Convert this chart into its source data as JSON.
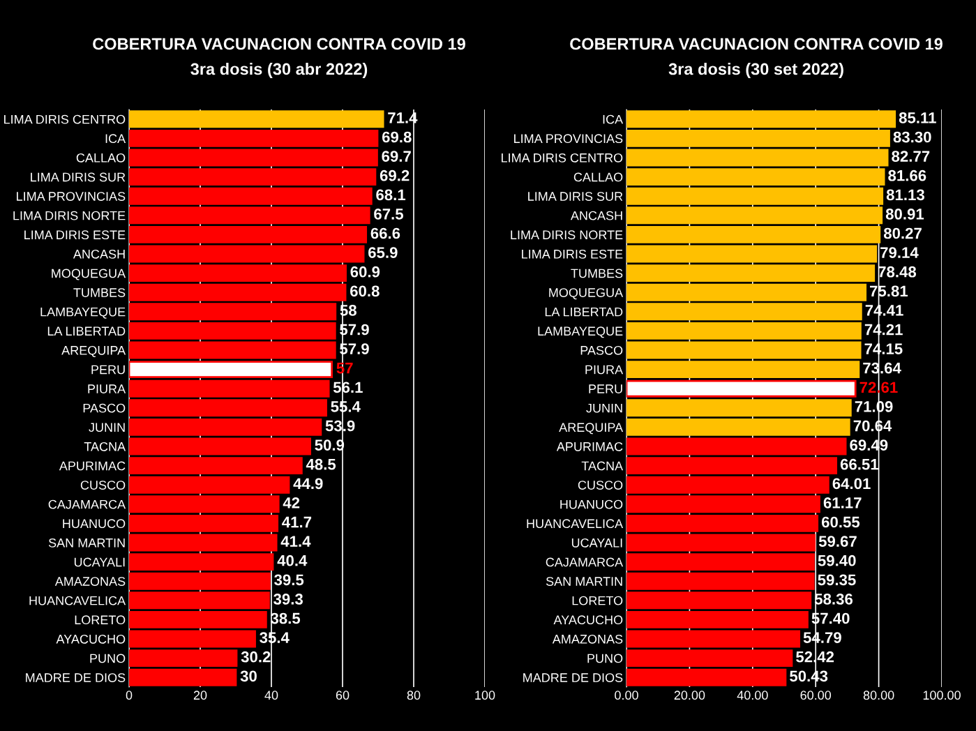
{
  "chart_data": [
    {
      "type": "bar",
      "orientation": "horizontal",
      "title": "COBERTURA VACUNACION CONTRA COVID 19",
      "subtitle": "3ra dosis (30 abr 2022)",
      "categories": [
        "LIMA DIRIS CENTRO",
        "ICA",
        "CALLAO",
        "LIMA DIRIS SUR",
        "LIMA PROVINCIAS",
        "LIMA DIRIS NORTE",
        "LIMA DIRIS ESTE",
        "ANCASH",
        "MOQUEGUA",
        "TUMBES",
        "LAMBAYEQUE",
        "LA LIBERTAD",
        "AREQUIPA",
        "PERU",
        "PIURA",
        "PASCO",
        "JUNIN",
        "TACNA",
        "APURIMAC",
        "CUSCO",
        "CAJAMARCA",
        "HUANUCO",
        "SAN MARTIN",
        "UCAYALI",
        "AMAZONAS",
        "HUANCAVELICA",
        "LORETO",
        "AYACUCHO",
        "PUNO",
        "MADRE DE DIOS"
      ],
      "values": [
        71.4,
        69.8,
        69.7,
        69.2,
        68.1,
        67.5,
        66.6,
        65.9,
        60.9,
        60.8,
        58,
        57.9,
        57.9,
        57,
        56.1,
        55.4,
        53.9,
        50.9,
        48.5,
        44.9,
        42,
        41.7,
        41.4,
        40.4,
        39.5,
        39.3,
        38.5,
        35.4,
        30.2,
        30
      ],
      "colors": [
        "#ffc000",
        "#ff0000",
        "#ff0000",
        "#ff0000",
        "#ff0000",
        "#ff0000",
        "#ff0000",
        "#ff0000",
        "#ff0000",
        "#ff0000",
        "#ff0000",
        "#ff0000",
        "#ff0000",
        "#ffffff",
        "#ff0000",
        "#ff0000",
        "#ff0000",
        "#ff0000",
        "#ff0000",
        "#ff0000",
        "#ff0000",
        "#ff0000",
        "#ff0000",
        "#ff0000",
        "#ff0000",
        "#ff0000",
        "#ff0000",
        "#ff0000",
        "#ff0000",
        "#ff0000"
      ],
      "xlim": [
        0,
        100
      ],
      "xticks": [
        0,
        20,
        40,
        60,
        80,
        100
      ],
      "grid": "x",
      "data_labels": true
    },
    {
      "type": "bar",
      "orientation": "horizontal",
      "title": "COBERTURA VACUNACION CONTRA COVID 19",
      "subtitle": "3ra dosis (30 set 2022)",
      "categories": [
        "ICA",
        "LIMA PROVINCIAS",
        "LIMA DIRIS CENTRO",
        "CALLAO",
        "LIMA DIRIS SUR",
        "ANCASH",
        "LIMA DIRIS NORTE",
        "LIMA DIRIS ESTE",
        "TUMBES",
        "MOQUEGUA",
        "LA LIBERTAD",
        "LAMBAYEQUE",
        "PASCO",
        "PIURA",
        "PERU",
        "JUNIN",
        "AREQUIPA",
        "APURIMAC",
        "TACNA",
        "CUSCO",
        "HUANUCO",
        "HUANCAVELICA",
        "UCAYALI",
        "CAJAMARCA",
        "SAN MARTIN",
        "LORETO",
        "AYACUCHO",
        "AMAZONAS",
        "PUNO",
        "MADRE DE DIOS"
      ],
      "values": [
        85.11,
        83.3,
        82.77,
        81.66,
        81.13,
        80.91,
        80.27,
        79.14,
        78.48,
        75.81,
        74.41,
        74.21,
        74.15,
        73.64,
        72.61,
        71.09,
        70.64,
        69.49,
        66.51,
        64.01,
        61.17,
        60.55,
        59.67,
        59.4,
        59.35,
        58.36,
        57.4,
        54.79,
        52.42,
        50.43
      ],
      "value_labels": [
        "85.11",
        "83.30",
        "82.77",
        "81.66",
        "81.13",
        "80.91",
        "80.27",
        "79.14",
        "78.48",
        "75.81",
        "74.41",
        "74.21",
        "74.15",
        "73.64",
        "72.61",
        "71.09",
        "70.64",
        "69.49",
        "66.51",
        "64.01",
        "61.17",
        "60.55",
        "59.67",
        "59.40",
        "59.35",
        "58.36",
        "57.40",
        "54.79",
        "52.42",
        "50.43"
      ],
      "colors": [
        "#ffc000",
        "#ffc000",
        "#ffc000",
        "#ffc000",
        "#ffc000",
        "#ffc000",
        "#ffc000",
        "#ffc000",
        "#ffc000",
        "#ffc000",
        "#ffc000",
        "#ffc000",
        "#ffc000",
        "#ffc000",
        "#ffffff",
        "#ffc000",
        "#ffc000",
        "#ff0000",
        "#ff0000",
        "#ff0000",
        "#ff0000",
        "#ff0000",
        "#ff0000",
        "#ff0000",
        "#ff0000",
        "#ff0000",
        "#ff0000",
        "#ff0000",
        "#ff0000",
        "#ff0000"
      ],
      "xlim": [
        0,
        100
      ],
      "xticks": [
        {
          "value": 0,
          "label": "0.00"
        },
        {
          "value": 20,
          "label": "20.00"
        },
        {
          "value": 40,
          "label": "40.00"
        },
        {
          "value": 60,
          "label": "60.00"
        },
        {
          "value": 80,
          "label": "80.00"
        },
        {
          "value": 100,
          "label": "100.00"
        }
      ],
      "grid": "x"
    }
  ]
}
